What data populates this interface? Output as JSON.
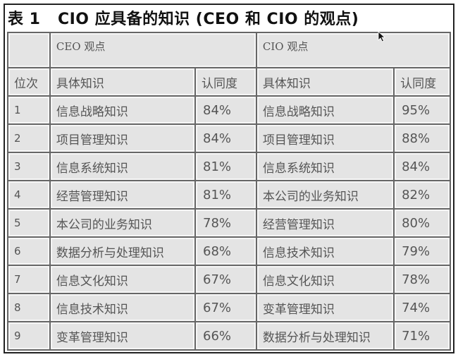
{
  "title": "表 1   CIO 应具备的知识 (CEO 和 CIO 的观点)",
  "groups": {
    "ceo": "CEO 观点",
    "cio": "CIO 观点"
  },
  "headers": {
    "rank": "位次",
    "ceo_knowledge": "具体知识",
    "ceo_pct": "认同度",
    "cio_knowledge": "具体知识",
    "cio_pct": "认同度"
  },
  "rows": [
    {
      "rank": "1",
      "ceo_knowledge": "信息战略知识",
      "ceo_pct": "84%",
      "cio_knowledge": "信息战略知识",
      "cio_pct": "95%"
    },
    {
      "rank": "2",
      "ceo_knowledge": "项目管理知识",
      "ceo_pct": "84%",
      "cio_knowledge": "项目管理知识",
      "cio_pct": "88%"
    },
    {
      "rank": "3",
      "ceo_knowledge": "信息系统知识",
      "ceo_pct": "81%",
      "cio_knowledge": "信息系统知识",
      "cio_pct": "84%"
    },
    {
      "rank": "4",
      "ceo_knowledge": "经营管理知识",
      "ceo_pct": "81%",
      "cio_knowledge": "本公司的业务知识",
      "cio_pct": "82%"
    },
    {
      "rank": "5",
      "ceo_knowledge": "本公司的业务知识",
      "ceo_pct": "78%",
      "cio_knowledge": "经营管理知识",
      "cio_pct": "80%"
    },
    {
      "rank": "6",
      "ceo_knowledge": "数据分析与处理知识",
      "ceo_pct": "68%",
      "cio_knowledge": "信息技术知识",
      "cio_pct": "79%"
    },
    {
      "rank": "7",
      "ceo_knowledge": "信息文化知识",
      "ceo_pct": "67%",
      "cio_knowledge": "信息文化知识",
      "cio_pct": "78%"
    },
    {
      "rank": "8",
      "ceo_knowledge": "信息技术知识",
      "ceo_pct": "67%",
      "cio_knowledge": "变革管理知识",
      "cio_pct": "74%"
    },
    {
      "rank": "9",
      "ceo_knowledge": "变革管理知识",
      "ceo_pct": "66%",
      "cio_knowledge": "数据分析与处理知识",
      "cio_pct": "71%"
    }
  ],
  "cursor_icon": "mouse-pointer-icon"
}
